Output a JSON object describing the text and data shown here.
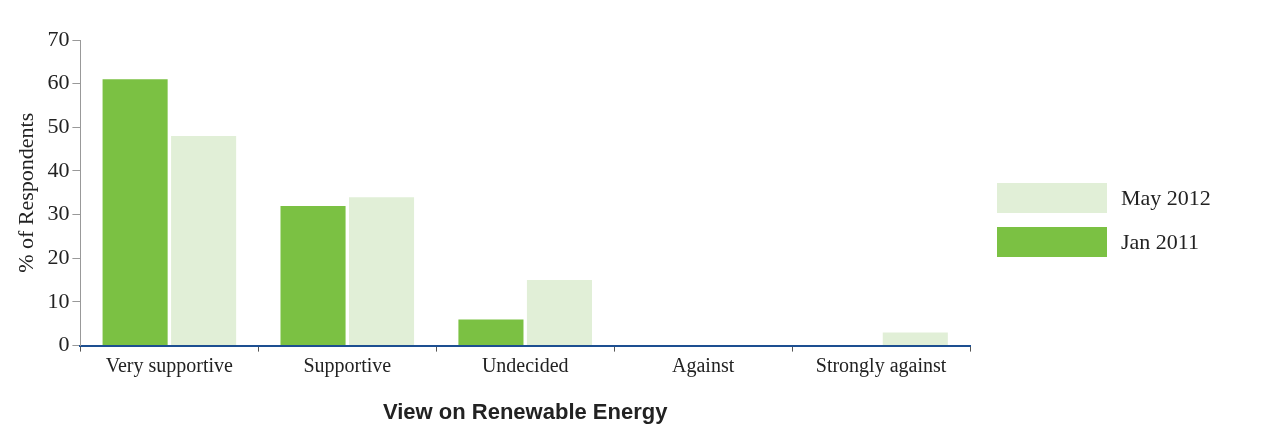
{
  "chart_data": {
    "type": "bar",
    "xlabel": "View on Renewable Energy",
    "ylabel": "% of Respondents",
    "categories": [
      "Very supportive",
      "Supportive",
      "Undecided",
      "Against",
      "Strongly against"
    ],
    "series": [
      {
        "name": "Jan 2011",
        "color": "#7bc143",
        "values": [
          61,
          32,
          6,
          0,
          0
        ]
      },
      {
        "name": "May 2012",
        "color": "#e1efd7",
        "values": [
          48,
          34,
          15,
          0,
          3
        ]
      }
    ],
    "ylim": [
      0,
      70
    ],
    "yticks": [
      0,
      10,
      20,
      30,
      40,
      50,
      60,
      70
    ],
    "grid": false,
    "legend": "right"
  }
}
